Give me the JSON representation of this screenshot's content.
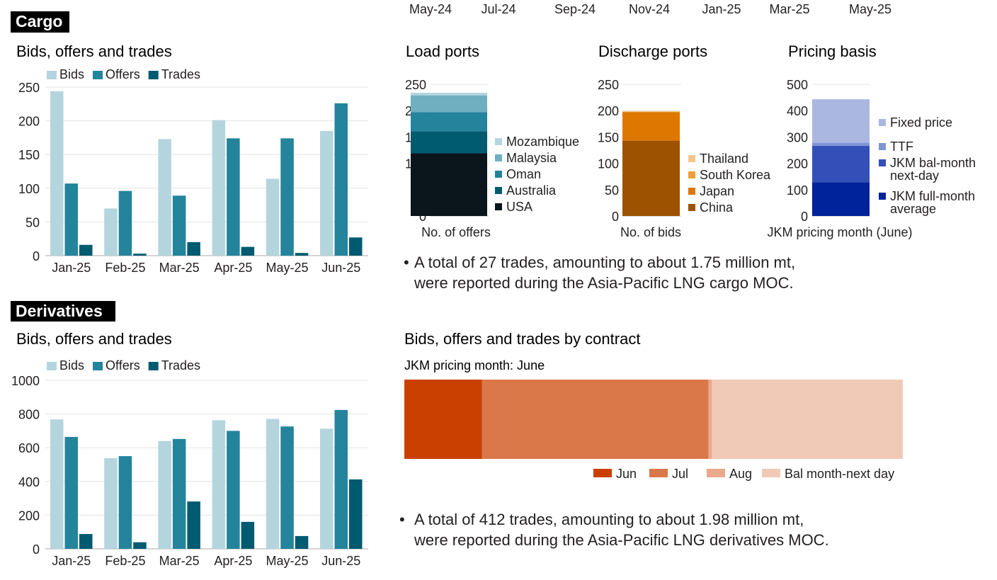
{
  "top_axis_labels": [
    "May-24",
    "Jul-24",
    "Sep-24",
    "Nov-24",
    "Jan-25",
    "Mar-25",
    "May-25"
  ],
  "sections": {
    "cargo": "Cargo",
    "derivatives": "Derivatives"
  },
  "notes": {
    "cargo": [
      "A total of 27 trades, amounting to about 1.75 million mt,",
      "were reported during the Asia-Pacific LNG cargo MOC."
    ],
    "derivatives": [
      "A total of 412 trades, amounting to about 1.98 million mt,",
      "were reported during the Asia-Pacific LNG derivatives MOC."
    ]
  },
  "colors": {
    "bids": "#b5d5de",
    "offers": "#23849c",
    "trades": "#005a70",
    "grid": "#e3e3e3",
    "axis": "#bbbbbb",
    "section_bg": "#000000",
    "section_fg": "#ffffff"
  },
  "chart_data": [
    {
      "id": "cargo-bot",
      "type": "bar",
      "title": "Bids, offers and trades",
      "categories": [
        "Jan-25",
        "Feb-25",
        "Mar-25",
        "Apr-25",
        "May-25",
        "Jun-25"
      ],
      "series": [
        {
          "name": "Bids",
          "color": "#b5d5de",
          "values": [
            244,
            70,
            173,
            201,
            114,
            185
          ]
        },
        {
          "name": "Offers",
          "color": "#23849c",
          "values": [
            107,
            96,
            89,
            174,
            174,
            226
          ]
        },
        {
          "name": "Trades",
          "color": "#005a70",
          "values": [
            16,
            3,
            20,
            13,
            4,
            27
          ]
        }
      ],
      "yticks": [
        0,
        50,
        100,
        150,
        200,
        250
      ],
      "ylim": [
        0,
        250
      ],
      "xlabel": "",
      "ylabel": "",
      "legend": "top-left"
    },
    {
      "id": "load-ports",
      "type": "bar",
      "stacked": true,
      "title": "Load ports",
      "xlabel": "No. of offers",
      "yticks": [
        0,
        50,
        100,
        150,
        200,
        250
      ],
      "ylim": [
        0,
        250
      ],
      "series": [
        {
          "name": "USA",
          "color": "#0b161c",
          "value": 119
        },
        {
          "name": "Australia",
          "color": "#005a70",
          "value": 42
        },
        {
          "name": "Oman",
          "color": "#23849c",
          "value": 36
        },
        {
          "name": "Malaysia",
          "color": "#6fafc0",
          "value": 32
        },
        {
          "name": "Mozambique",
          "color": "#b5d5de",
          "value": 5
        }
      ],
      "legend": "right"
    },
    {
      "id": "discharge-ports",
      "type": "bar",
      "stacked": true,
      "title": "Discharge ports",
      "xlabel": "No. of bids",
      "yticks": [
        0,
        50,
        100,
        150,
        200,
        250
      ],
      "ylim": [
        0,
        250
      ],
      "series": [
        {
          "name": "China",
          "color": "#9c5200",
          "value": 143
        },
        {
          "name": "Japan",
          "color": "#dd7700",
          "value": 54
        },
        {
          "name": "South Korea",
          "color": "#ee9f38",
          "value": 1
        },
        {
          "name": "Thailand",
          "color": "#f5c88a",
          "value": 1
        }
      ],
      "legend": "right"
    },
    {
      "id": "pricing-basis",
      "type": "bar",
      "stacked": true,
      "title": "Pricing basis",
      "xlabel": "JKM pricing month (June)",
      "yticks": [
        0,
        100,
        200,
        300,
        400,
        500
      ],
      "ylim": [
        0,
        500
      ],
      "series": [
        {
          "name": "JKM full-month average",
          "color": "#00229a",
          "value": 128
        },
        {
          "name": "JKM bal-month next-day",
          "color": "#3350b8",
          "value": 138
        },
        {
          "name": "TTF",
          "color": "#7f95d6",
          "value": 12
        },
        {
          "name": "Fixed price",
          "color": "#aab7e0",
          "value": 165
        }
      ],
      "legend": "right"
    },
    {
      "id": "deriv-bot",
      "type": "bar",
      "title": "Bids, offers and trades",
      "categories": [
        "Jan-25",
        "Feb-25",
        "Mar-25",
        "Apr-25",
        "May-25",
        "Jun-25"
      ],
      "series": [
        {
          "name": "Bids",
          "color": "#b5d5de",
          "values": [
            768,
            538,
            640,
            763,
            771,
            713
          ]
        },
        {
          "name": "Offers",
          "color": "#23849c",
          "values": [
            664,
            550,
            652,
            700,
            726,
            824
          ]
        },
        {
          "name": "Trades",
          "color": "#005a70",
          "values": [
            88,
            39,
            281,
            160,
            76,
            412
          ]
        }
      ],
      "yticks": [
        0,
        200,
        400,
        600,
        800,
        1000
      ],
      "ylim": [
        0,
        1000
      ],
      "xlabel": "",
      "ylabel": "",
      "legend": "top-left"
    },
    {
      "id": "by-contract",
      "type": "bar",
      "stacked": true,
      "orientation": "horizontal",
      "title": "Bids, offers and trades by contract",
      "subtitle": "JKM pricing month: June",
      "unit": "percent of total",
      "series": [
        {
          "name": "Jun",
          "color": "#c94000",
          "value": 15.6
        },
        {
          "name": "Jul",
          "color": "#db784a",
          "value": 45.4
        },
        {
          "name": "Aug",
          "color": "#e8aa8a",
          "value": 0.7
        },
        {
          "name": "Bal month-next day",
          "color": "#f0cab6",
          "value": 38.3
        }
      ],
      "legend": "bottom-right"
    }
  ]
}
